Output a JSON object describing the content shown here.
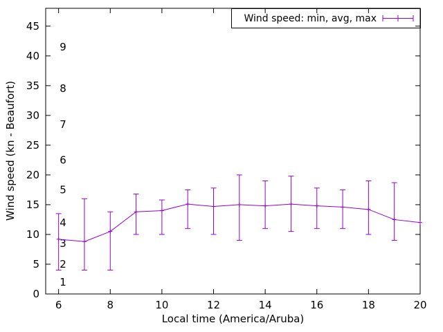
{
  "chart_data": {
    "type": "line",
    "style": "errorbars",
    "title": "",
    "legend": "Wind speed: min, avg, max",
    "xlabel": "Local time (America/Aruba)",
    "ylabel": "Wind speed (kn - Beaufort)",
    "xlim": [
      5.5,
      20
    ],
    "ylim": [
      0,
      48
    ],
    "xticks": [
      6,
      8,
      10,
      12,
      14,
      16,
      18,
      20
    ],
    "yticks": [
      0,
      5,
      10,
      15,
      20,
      25,
      30,
      35,
      40,
      45
    ],
    "beaufort_axis": [
      {
        "label": "1",
        "kn": 2
      },
      {
        "label": "2",
        "kn": 5
      },
      {
        "label": "3",
        "kn": 8.5
      },
      {
        "label": "4",
        "kn": 12
      },
      {
        "label": "5",
        "kn": 17.5
      },
      {
        "label": "6",
        "kn": 22.5
      },
      {
        "label": "7",
        "kn": 28.5
      },
      {
        "label": "8",
        "kn": 34.5
      },
      {
        "label": "9",
        "kn": 41.5
      }
    ],
    "series_color": "#9400d3",
    "grid": false,
    "legend_position": "top-right",
    "x": [
      6,
      7,
      8,
      9,
      10,
      11,
      12,
      13,
      14,
      15,
      16,
      17,
      18,
      19,
      20
    ],
    "avg": [
      9.2,
      8.8,
      10.5,
      13.8,
      14,
      15.1,
      14.7,
      15,
      14.8,
      15.1,
      14.8,
      14.6,
      14.2,
      12.5,
      12
    ],
    "min": [
      4,
      4,
      4,
      10,
      10,
      11,
      10,
      9,
      11,
      10.5,
      11,
      11,
      10,
      9,
      null
    ],
    "max": [
      13.5,
      16,
      13.8,
      16.8,
      15.8,
      17.5,
      17.8,
      20,
      19,
      19.8,
      17.8,
      17.5,
      19,
      18.7,
      null
    ]
  }
}
